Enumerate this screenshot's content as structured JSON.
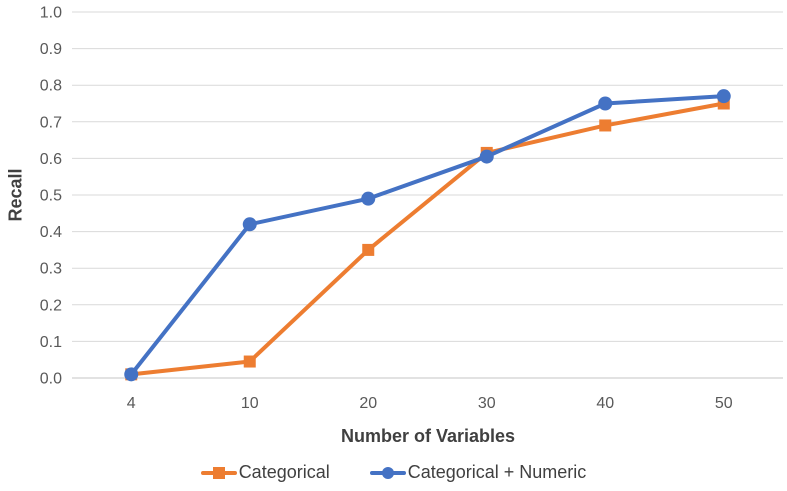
{
  "chart_data": {
    "type": "line",
    "title": "",
    "xlabel": "Number of Variables",
    "ylabel": "Recall",
    "categories": [
      "4",
      "10",
      "20",
      "30",
      "40",
      "50"
    ],
    "series": [
      {
        "name": "Categorical",
        "marker": "square",
        "color": "#ED7D31",
        "values": [
          0.01,
          0.045,
          0.35,
          0.615,
          0.69,
          0.75
        ]
      },
      {
        "name": "Categorical + Numeric",
        "marker": "circle",
        "color": "#4472C4",
        "values": [
          0.01,
          0.42,
          0.49,
          0.605,
          0.75,
          0.77
        ]
      }
    ],
    "ylim": [
      0,
      1
    ],
    "ytick_step": 0.1,
    "ytick_labels": [
      "0.0",
      "0.1",
      "0.2",
      "0.3",
      "0.4",
      "0.5",
      "0.6",
      "0.7",
      "0.8",
      "0.9",
      "1.0"
    ],
    "grid": "horizontal",
    "legend_position": "bottom",
    "colors": {
      "gridline": "#D9D9D9",
      "axis_line": "#D9D9D9",
      "tick_text": "#595959",
      "title_text": "#404040"
    }
  }
}
